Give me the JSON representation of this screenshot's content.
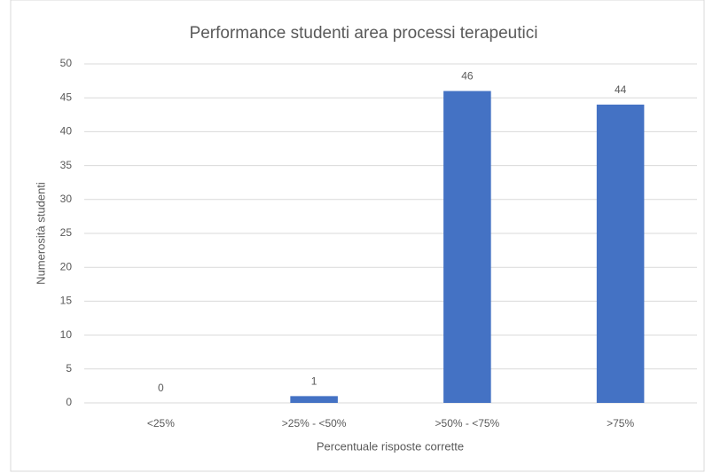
{
  "chart_data": {
    "type": "bar",
    "title": "Performance studenti area processi terapeutici",
    "x_label": "Percentuale risposte corrette",
    "y_label": "Numerosità studenti",
    "categories": [
      "<25%",
      ">25% - <50%",
      ">50% - <75%",
      ">75%"
    ],
    "values": [
      0,
      1,
      46,
      44
    ],
    "color": "#4472c4",
    "ylim": [
      0,
      50
    ],
    "yticks": [
      0,
      5,
      10,
      15,
      20,
      25,
      30,
      35,
      40,
      45,
      50
    ],
    "grid": true
  }
}
